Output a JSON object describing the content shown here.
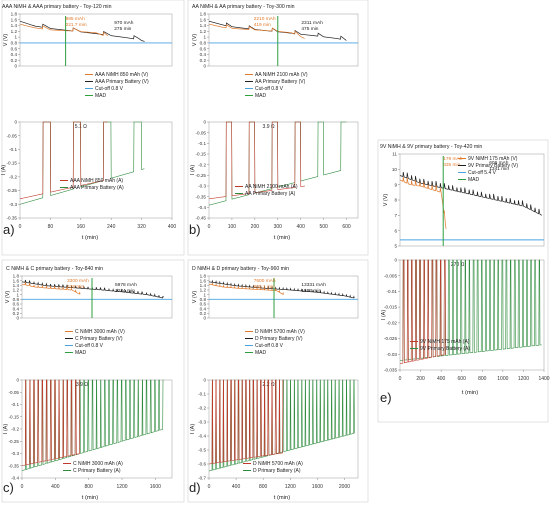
{
  "figure": {
    "colors": {
      "nimh": "#c0392b",
      "primary": "#1f1f1f",
      "cutoff": "#4aa3df",
      "mad": "#2e9e3e",
      "nimh_annot": "#e0792b",
      "primary_current": "#2e8b3d"
    }
  },
  "chart_data": [
    {
      "id": "a",
      "panel_label": "a)",
      "title": "AAA NiMH & AAA primary battery - Toy-120 min",
      "type": "line",
      "xlabel": "t (min)",
      "xticks": [
        0,
        80,
        160,
        240,
        320,
        400
      ],
      "xlim": [
        0,
        400
      ],
      "voltage": {
        "ylabel": "V (V)",
        "ylim": [
          0,
          1.8
        ],
        "yticks": [
          0,
          0.2,
          0.4,
          0.6,
          0.8,
          1,
          1.2,
          1.4,
          1.6,
          1.8
        ],
        "cutoff": 0.8,
        "mad_t": 120,
        "nimh": {
          "end_t": 231,
          "t": [
            0,
            20,
            40,
            60,
            80,
            110,
            140,
            170,
            200,
            231
          ],
          "v": [
            1.45,
            1.38,
            1.32,
            1.28,
            1.25,
            1.23,
            1.21,
            1.18,
            1.15,
            1.0
          ]
        },
        "primary": {
          "end_t": 328,
          "t": [
            0,
            40,
            80,
            120,
            160,
            200,
            240,
            280,
            310,
            328
          ],
          "v": [
            1.55,
            1.38,
            1.3,
            1.24,
            1.18,
            1.12,
            1.05,
            0.98,
            0.92,
            0.85
          ]
        },
        "period": 80,
        "on": 60,
        "annot_nimh": [
          "885 mAh",
          "221.7 min"
        ],
        "annot_primary": [
          "970 mAh",
          "275 min"
        ],
        "legend": [
          "AAA NiMH 850 mAh (V)",
          "AAA Primary Battery (V)",
          "Cut-off 0.8 V",
          "MAD"
        ]
      },
      "current": {
        "ylabel": "I (A)",
        "ylim": [
          -0.35,
          0
        ],
        "yticks": [
          0,
          -0.05,
          -0.1,
          -0.15,
          -0.2,
          -0.25,
          -0.3,
          -0.35
        ],
        "resistance": "5.1 Ω",
        "nimh": {
          "end_t": 231,
          "start": -0.28,
          "end": -0.21
        },
        "primary": {
          "end_t": 328,
          "start": -0.3,
          "end": -0.17
        },
        "legend": [
          "AAA NiMH 850 mAh (A)",
          "AAA Primary Battery (A)"
        ]
      }
    },
    {
      "id": "b",
      "panel_label": "b)",
      "title": "AA NiMH & AA primary battery - Toy-300 min",
      "type": "line",
      "xlabel": "t (min)",
      "xticks": [
        0,
        100,
        200,
        300,
        400,
        500,
        600
      ],
      "xlim": [
        0,
        650
      ],
      "voltage": {
        "ylabel": "V (V)",
        "ylim": [
          0,
          1.8
        ],
        "yticks": [
          0,
          0.2,
          0.4,
          0.6,
          0.8,
          1,
          1.2,
          1.4,
          1.6,
          1.8
        ],
        "cutoff": 0.8,
        "mad_t": 300,
        "nimh": {
          "end_t": 419,
          "t": [
            0,
            60,
            120,
            180,
            240,
            300,
            360,
            419
          ],
          "v": [
            1.45,
            1.34,
            1.29,
            1.26,
            1.23,
            1.2,
            1.15,
            0.95
          ]
        },
        "primary": {
          "end_t": 600,
          "t": [
            0,
            80,
            160,
            240,
            320,
            400,
            480,
            560,
            600
          ],
          "v": [
            1.55,
            1.38,
            1.3,
            1.23,
            1.17,
            1.1,
            1.03,
            0.95,
            0.88
          ]
        },
        "period": 100,
        "on": 75,
        "annot_nimh": [
          "2210 mAh",
          "419 min"
        ],
        "annot_primary": [
          "2311 mAh",
          "475 min"
        ],
        "legend": [
          "AA NiMH 2100 mAh (V)",
          "AA Primary Battery (V)",
          "Cut-off 0.8 V",
          "MAD"
        ]
      },
      "current": {
        "ylabel": "I (A)",
        "ylim": [
          -0.45,
          0
        ],
        "yticks": [
          0,
          -0.05,
          -0.1,
          -0.15,
          -0.2,
          -0.25,
          -0.3,
          -0.35,
          -0.4,
          -0.45
        ],
        "resistance": "3.9 Ω",
        "nimh": {
          "end_t": 419,
          "start": -0.36,
          "end": -0.3
        },
        "primary": {
          "end_t": 600,
          "start": -0.39,
          "end": -0.22
        },
        "legend": [
          "AA NiMH 2100 mAh (A)",
          "AA Primary Battery (A)"
        ]
      }
    },
    {
      "id": "c",
      "panel_label": "c)",
      "title": "C NiMH & C primary battery - Toy-840 min",
      "type": "line",
      "xlabel": "t (min)",
      "xticks": [
        0,
        400,
        800,
        1200,
        1600
      ],
      "xlim": [
        0,
        1800
      ],
      "voltage": {
        "ylabel": "V (V)",
        "ylim": [
          0,
          1.8
        ],
        "yticks": [
          0,
          0.2,
          0.4,
          0.6,
          0.8,
          1,
          1.2,
          1.4,
          1.6,
          1.8
        ],
        "cutoff": 0.8,
        "mad_t": 840,
        "nimh": {
          "end_t": 700,
          "t": [
            0,
            150,
            300,
            450,
            600,
            700
          ],
          "v": [
            1.45,
            1.33,
            1.28,
            1.24,
            1.2,
            1.0
          ]
        },
        "primary": {
          "end_t": 1700,
          "t": [
            0,
            300,
            600,
            900,
            1200,
            1500,
            1700
          ],
          "v": [
            1.55,
            1.38,
            1.3,
            1.22,
            1.12,
            1.0,
            0.85
          ]
        },
        "period": 50,
        "on": 40,
        "annot_nimh": [
          "3300 mAh",
          "628 min"
        ],
        "annot_primary": [
          "5978 mAh",
          "1234 min"
        ],
        "legend": [
          "C NiMH 3000 mAh (V)",
          "C Primary Battery (V)",
          "Cut-off 0.8 V",
          "MAD"
        ]
      },
      "current": {
        "ylabel": "I (A)",
        "ylim": [
          -0.4,
          0
        ],
        "yticks": [
          0,
          -0.05,
          -0.1,
          -0.15,
          -0.2,
          -0.25,
          -0.3,
          -0.35,
          -0.4
        ],
        "resistance": "3.9 Ω",
        "nimh": {
          "end_t": 700,
          "start": -0.35,
          "end": -0.3
        },
        "primary": {
          "end_t": 1700,
          "start": -0.37,
          "end": -0.2
        },
        "legend": [
          "C NiMH 3000 mAh (A)",
          "C Primary Battery (A)"
        ]
      }
    },
    {
      "id": "d",
      "panel_label": "d)",
      "title": "D NiMH & D primary battery - Toy-960 min",
      "type": "line",
      "xlabel": "t (min)",
      "xticks": [
        0,
        400,
        800,
        1200,
        1600,
        2000
      ],
      "xlim": [
        0,
        2200
      ],
      "voltage": {
        "ylabel": "V (V)",
        "ylim": [
          0,
          1.8
        ],
        "yticks": [
          0,
          0.2,
          0.4,
          0.6,
          0.8,
          1,
          1.2,
          1.4,
          1.6,
          1.8
        ],
        "cutoff": 0.8,
        "mad_t": 960,
        "nimh": {
          "end_t": 1100,
          "t": [
            0,
            200,
            400,
            600,
            800,
            1000,
            1100
          ],
          "v": [
            1.45,
            1.33,
            1.28,
            1.24,
            1.21,
            1.17,
            1.0
          ]
        },
        "primary": {
          "end_t": 2150,
          "t": [
            0,
            400,
            800,
            1200,
            1600,
            2000,
            2150
          ],
          "v": [
            1.55,
            1.38,
            1.28,
            1.2,
            1.1,
            0.95,
            0.85
          ]
        },
        "period": 55,
        "on": 45,
        "annot_nimh": [
          "7600 mAh",
          "805.1 min"
        ],
        "annot_primary": [
          "13331 mAh",
          "1593 min"
        ],
        "legend": [
          "D NiMH 5700 mAh (V)",
          "D Primary Battery (V)",
          "Cut-off 0.8 V",
          "MAD"
        ]
      },
      "current": {
        "ylabel": "I (A)",
        "ylim": [
          -0.7,
          0
        ],
        "yticks": [
          0,
          -0.1,
          -0.2,
          -0.3,
          -0.4,
          -0.5,
          -0.6,
          -0.7
        ],
        "resistance": "2.2 Ω",
        "nimh": {
          "end_t": 1100,
          "start": -0.6,
          "end": -0.52
        },
        "primary": {
          "end_t": 2150,
          "start": -0.65,
          "end": -0.38
        },
        "legend": [
          "D NiMH 5700 mAh (A)",
          "D Primary Battery (A)"
        ]
      }
    },
    {
      "id": "e",
      "panel_label": "e)",
      "title": "9V NiMH & 9V primary battery - Toy-420 min",
      "type": "line",
      "xlabel": "t (min)",
      "xticks": [
        0,
        200,
        400,
        600,
        800,
        1000,
        1200,
        1400
      ],
      "xlim": [
        0,
        1400
      ],
      "voltage": {
        "ylabel": "V (V)",
        "ylim": [
          5,
          11
        ],
        "yticks": [
          5,
          6,
          7,
          8,
          9,
          10,
          11
        ],
        "cutoff": 5.4,
        "mad_t": 420,
        "nimh": {
          "end_t": 450,
          "t": [
            0,
            100,
            200,
            300,
            400,
            450
          ],
          "v": [
            9.3,
            9.0,
            8.9,
            8.7,
            8.5,
            6.0
          ]
        },
        "primary": {
          "end_t": 1380,
          "t": [
            0,
            200,
            400,
            600,
            800,
            1000,
            1200,
            1380
          ],
          "v": [
            9.6,
            9.1,
            8.8,
            8.5,
            8.2,
            7.9,
            7.6,
            7.0
          ]
        },
        "period": 40,
        "on": 30,
        "annot_nimh": [
          "179 mAh",
          "335 min"
        ],
        "annot_primary": [
          "606 mAh",
          "1341 min"
        ],
        "legend": [
          "9V NiMH 175 mAh (V)",
          "9V Primary Battery (V)",
          "Cut-off 5.4 V",
          "MAD"
        ]
      },
      "current": {
        "ylabel": "I (A)",
        "ylim": [
          -0.035,
          0
        ],
        "yticks": [
          0,
          -0.005,
          -0.01,
          -0.015,
          -0.02,
          -0.025,
          -0.03,
          -0.035
        ],
        "resistance": "270 Ω",
        "nimh": {
          "end_t": 450,
          "start": -0.033,
          "end": -0.03
        },
        "primary": {
          "end_t": 1380,
          "start": -0.032,
          "end": -0.027
        },
        "legend": [
          "9V NiMH 175 mAh (A)",
          "9V Primary Battery (A)"
        ]
      }
    }
  ]
}
